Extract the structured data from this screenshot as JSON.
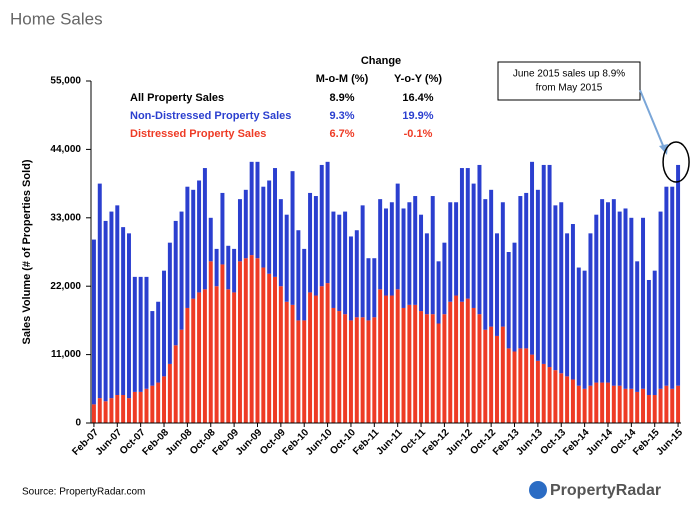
{
  "page_title": "Home Sales",
  "source": "Source: PropertyRadar.com",
  "logo": "PropertyRadar",
  "chart_data": {
    "type": "stacked_bar",
    "y_label": "Sales Volume (# of Properties Sold)",
    "categories": [
      "Feb-07",
      null,
      null,
      null,
      "Jun-07",
      null,
      null,
      null,
      "Oct-07",
      null,
      null,
      null,
      "Feb-08",
      null,
      null,
      null,
      "Jun-08",
      null,
      null,
      null,
      "Oct-08",
      null,
      null,
      null,
      "Feb-09",
      null,
      null,
      null,
      "Jun-09",
      null,
      null,
      null,
      "Oct-09",
      null,
      null,
      null,
      "Feb-10",
      null,
      null,
      null,
      "Jun-10",
      null,
      null,
      null,
      "Oct-10",
      null,
      null,
      null,
      "Feb-11",
      null,
      null,
      null,
      "Jun-11",
      null,
      null,
      null,
      "Oct-11",
      null,
      null,
      null,
      "Feb-12",
      null,
      null,
      null,
      "Jun-12",
      null,
      null,
      null,
      "Oct-12",
      null,
      null,
      null,
      "Feb-13",
      null,
      null,
      null,
      "Jun-13",
      null,
      null,
      null,
      "Oct-13",
      null,
      null,
      null,
      "Feb-14",
      null,
      null,
      null,
      "Jun-14",
      null,
      null,
      null,
      "Oct-14",
      null,
      null,
      null,
      "Feb-15",
      null,
      null,
      null,
      "Jun-15"
    ],
    "series": [
      {
        "name": "Distressed Property Sales",
        "color": "#ee3b25",
        "values": [
          3000,
          4000,
          3500,
          4000,
          4500,
          4500,
          4000,
          5000,
          5000,
          5500,
          6000,
          6500,
          7500,
          9500,
          12500,
          15000,
          18500,
          20000,
          21000,
          21500,
          26000,
          22000,
          25500,
          21500,
          21000,
          26000,
          26500,
          27000,
          26500,
          25000,
          24000,
          23500,
          22000,
          19500,
          19000,
          16500,
          16500,
          21000,
          20500,
          22000,
          22500,
          18500,
          18000,
          17500,
          16500,
          17000,
          17000,
          16500,
          17000,
          21500,
          20500,
          20500,
          21500,
          18500,
          19000,
          19000,
          18000,
          17500,
          17500,
          16000,
          17500,
          19500,
          20500,
          19500,
          20000,
          18500,
          17500,
          15000,
          15500,
          14000,
          15500,
          12000,
          11500,
          12000,
          12000,
          11000,
          10000,
          9500,
          9000,
          8500,
          8000,
          7500,
          7000,
          6000,
          5500,
          6000,
          6500,
          6500,
          6500,
          6000,
          6000,
          5500,
          5500,
          5000,
          5500,
          4500,
          4500,
          5500,
          6000,
          5500,
          6000
        ]
      },
      {
        "name": "Non-Distressed Property Sales",
        "color": "#2b3fcf",
        "values": [
          26500,
          34500,
          29000,
          30000,
          30500,
          27000,
          26500,
          18500,
          18500,
          18000,
          12000,
          13000,
          17000,
          19500,
          20000,
          19000,
          19500,
          17500,
          18000,
          19500,
          7000,
          6000,
          11500,
          7000,
          7000,
          10000,
          11000,
          15000,
          15500,
          13000,
          15000,
          17500,
          14000,
          14000,
          21500,
          14500,
          11500,
          16000,
          16000,
          19500,
          19500,
          15500,
          15500,
          16500,
          13500,
          14000,
          18000,
          10000,
          9500,
          14500,
          14000,
          15000,
          17000,
          16000,
          16500,
          17500,
          15500,
          13000,
          19000,
          10000,
          11500,
          16000,
          15000,
          21500,
          21000,
          20000,
          24000,
          21000,
          22000,
          16500,
          20000,
          15500,
          17500,
          24500,
          25000,
          31000,
          27500,
          32000,
          32500,
          26500,
          27500,
          23000,
          25000,
          19000,
          19000,
          24500,
          27000,
          29500,
          29000,
          30000,
          28000,
          29000,
          27500,
          21000,
          27500,
          18500,
          20000,
          28500,
          32000,
          32500,
          35500
        ]
      }
    ],
    "ylim": [
      0,
      55000
    ],
    "yticks": [
      0,
      {
        "value": 11000,
        "label": "11,000"
      },
      {
        "value": 22000,
        "label": "22,000"
      },
      {
        "value": 33000,
        "label": "33,000"
      },
      {
        "value": 44000,
        "label": "44,000"
      },
      {
        "value": 55000,
        "label": "55,000"
      }
    ],
    "grid": false,
    "table": {
      "header": "Change",
      "columns": [
        "M-o-M (%)",
        "Y-o-Y (%)"
      ],
      "rows": [
        {
          "label": "All Property Sales",
          "values": [
            "8.9%",
            "16.4%"
          ]
        },
        {
          "values": [
            "9.3%",
            "19.9%"
          ]
        },
        {
          "values": [
            "6.7%",
            "-0.1%"
          ]
        }
      ]
    },
    "annotation": [
      "June 2015 sales up 8.9%",
      "from May 2015"
    ]
  }
}
